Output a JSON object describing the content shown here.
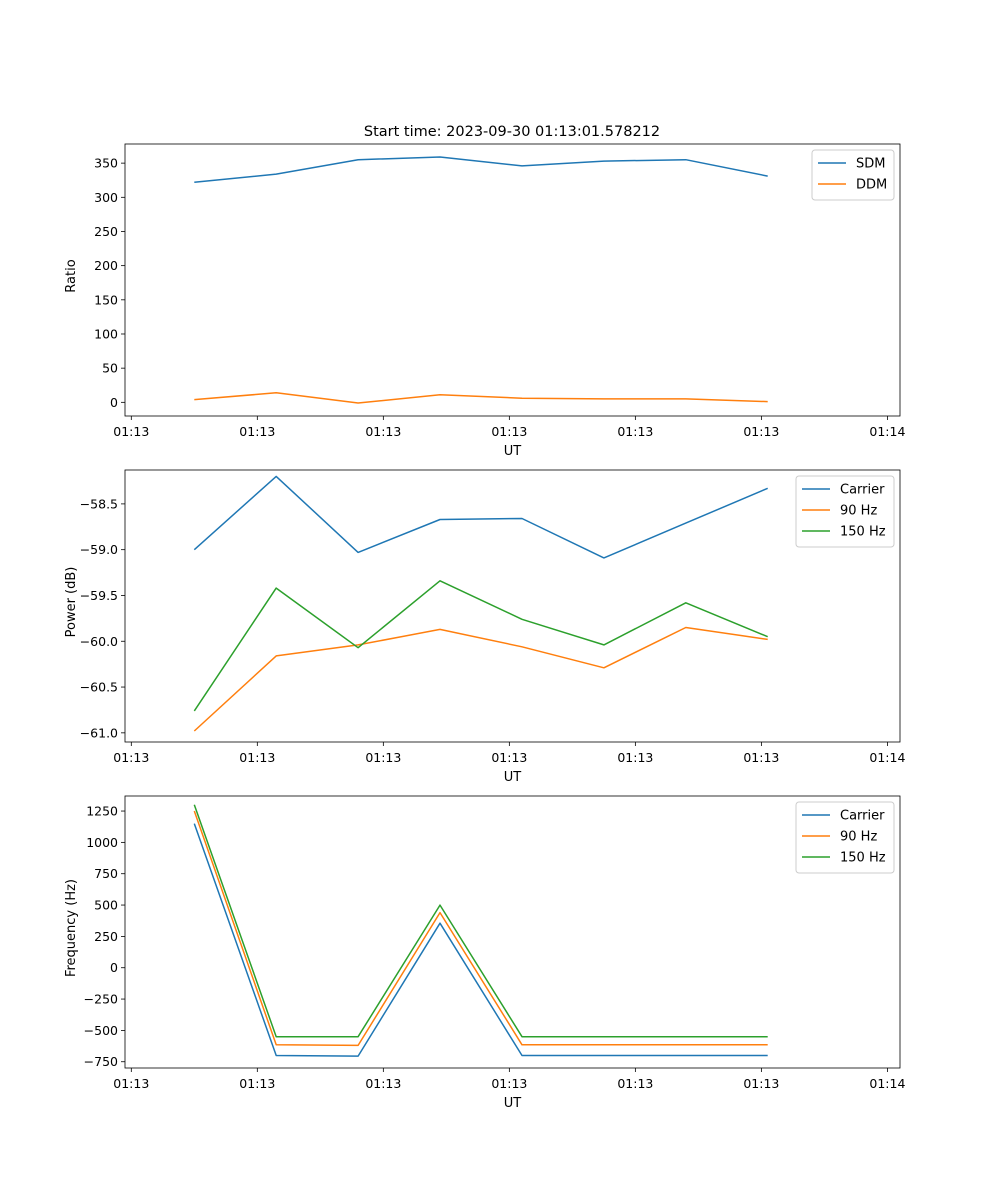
{
  "title": "Start time: 2023-09-30 01:13:01.578212",
  "chart_data": [
    {
      "type": "line",
      "title": "Start time: 2023-09-30 01:13:01.578212",
      "xlabel": "UT",
      "ylabel": "Ratio",
      "x": [
        0.5,
        1.15,
        1.8,
        2.45,
        3.1,
        3.75,
        4.4,
        5.05
      ],
      "xlim": [
        -0.05,
        6.1
      ],
      "xticks": [
        0,
        1,
        2,
        3,
        4,
        5,
        6
      ],
      "xtick_labels": [
        "01:13",
        "01:13",
        "01:13",
        "01:13",
        "01:13",
        "01:13",
        "01:14"
      ],
      "ylim": [
        -20,
        378
      ],
      "yticks": [
        0,
        50,
        100,
        150,
        200,
        250,
        300,
        350
      ],
      "ytick_labels": [
        "0",
        "50",
        "100",
        "150",
        "200",
        "250",
        "300",
        "350"
      ],
      "legend_position": "top-right",
      "series": [
        {
          "name": "SDM",
          "color": "#1f77b4",
          "values": [
            322,
            334,
            355,
            359,
            346,
            353,
            355,
            331
          ]
        },
        {
          "name": "DDM",
          "color": "#ff7f0e",
          "values": [
            4,
            14,
            -1,
            11,
            6,
            5,
            5,
            1
          ]
        }
      ]
    },
    {
      "type": "line",
      "title": "",
      "xlabel": "UT",
      "ylabel": "Power (dB)",
      "x": [
        0.5,
        1.15,
        1.8,
        2.45,
        3.1,
        3.75,
        4.4,
        5.05
      ],
      "xlim": [
        -0.05,
        6.1
      ],
      "xticks": [
        0,
        1,
        2,
        3,
        4,
        5,
        6
      ],
      "xtick_labels": [
        "01:13",
        "01:13",
        "01:13",
        "01:13",
        "01:13",
        "01:13",
        "01:14"
      ],
      "ylim": [
        -61.1,
        -58.13
      ],
      "yticks": [
        -61.0,
        -60.5,
        -60.0,
        -59.5,
        -59.0,
        -58.5
      ],
      "ytick_labels": [
        "−61.0",
        "−60.5",
        "−60.0",
        "−59.5",
        "−59.0",
        "−58.5"
      ],
      "legend_position": "top-right",
      "series": [
        {
          "name": "Carrier",
          "color": "#1f77b4",
          "values": [
            -59.0,
            -58.2,
            -59.03,
            -58.67,
            -58.66,
            -59.09,
            -58.71,
            -58.33
          ]
        },
        {
          "name": "90 Hz",
          "color": "#ff7f0e",
          "values": [
            -60.98,
            -60.16,
            -60.04,
            -59.87,
            -60.06,
            -60.29,
            -59.85,
            -59.98
          ]
        },
        {
          "name": "150 Hz",
          "color": "#2ca02c",
          "values": [
            -60.76,
            -59.42,
            -60.07,
            -59.34,
            -59.76,
            -60.04,
            -59.58,
            -59.95
          ]
        }
      ]
    },
    {
      "type": "line",
      "title": "",
      "xlabel": "UT",
      "ylabel": "Frequency (Hz)",
      "x": [
        0.5,
        1.15,
        1.8,
        2.45,
        3.1,
        3.75,
        4.4,
        5.05
      ],
      "xlim": [
        -0.05,
        6.1
      ],
      "xticks": [
        0,
        1,
        2,
        3,
        4,
        5,
        6
      ],
      "xtick_labels": [
        "01:13",
        "01:13",
        "01:13",
        "01:13",
        "01:13",
        "01:13",
        "01:14"
      ],
      "ylim": [
        -800,
        1370
      ],
      "yticks": [
        -750,
        -500,
        -250,
        0,
        250,
        500,
        750,
        1000,
        1250
      ],
      "ytick_labels": [
        "−750",
        "−500",
        "−250",
        "0",
        "250",
        "500",
        "750",
        "1000",
        "1250"
      ],
      "legend_position": "top-right",
      "series": [
        {
          "name": "Carrier",
          "color": "#1f77b4",
          "values": [
            1150,
            -700,
            -705,
            355,
            -700,
            -700,
            -700,
            -700
          ]
        },
        {
          "name": "90 Hz",
          "color": "#ff7f0e",
          "values": [
            1250,
            -615,
            -620,
            440,
            -615,
            -615,
            -615,
            -615
          ]
        },
        {
          "name": "150 Hz",
          "color": "#2ca02c",
          "values": [
            1300,
            -550,
            -550,
            500,
            -550,
            -550,
            -550,
            -550
          ]
        }
      ]
    }
  ]
}
